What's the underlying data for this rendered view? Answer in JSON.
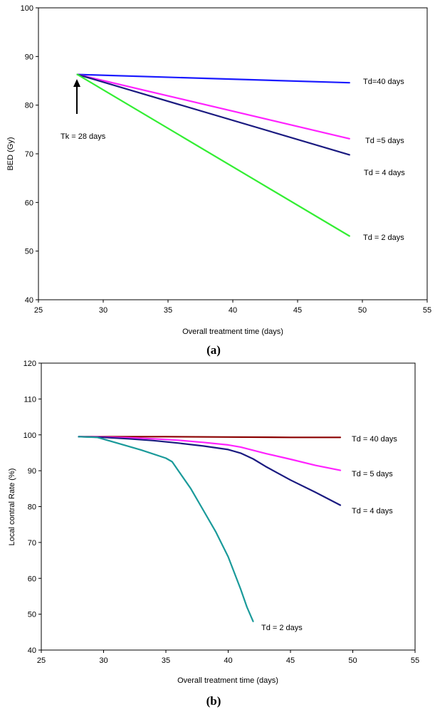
{
  "chart_data": [
    {
      "type": "line",
      "caption": "(a)",
      "xlabel": "Overall treatment time (days)",
      "ylabel": "BED (Gy)",
      "xlim": [
        25,
        55
      ],
      "ylim": [
        40,
        100
      ],
      "xticks": [
        25,
        30,
        35,
        40,
        45,
        50,
        55
      ],
      "yticks": [
        40,
        50,
        60,
        70,
        80,
        90,
        100
      ],
      "annotation": {
        "text": "Tk = 28 days",
        "x": 28
      },
      "series": [
        {
          "name": "Td=40 days",
          "label": "Td=40 days",
          "color": "#1a1aff",
          "x": [
            28,
            49
          ],
          "y": [
            86.3,
            84.6
          ]
        },
        {
          "name": "Td =5 days",
          "label": "Td =5 days",
          "color": "#ff22ff",
          "x": [
            28,
            49
          ],
          "y": [
            86.3,
            73.1
          ]
        },
        {
          "name": "Td = 4 days",
          "label": "Td = 4 days",
          "color": "#1a1a80",
          "x": [
            28,
            49
          ],
          "y": [
            86.3,
            69.8
          ]
        },
        {
          "name": "Td = 2 days",
          "label": "Td = 2 days",
          "color": "#33ee33",
          "x": [
            28,
            49
          ],
          "y": [
            86.3,
            53.1
          ]
        }
      ]
    },
    {
      "type": "line",
      "caption": "(b)",
      "xlabel": "Overall treatment time (days)",
      "ylabel": "Local contral Rate (%)",
      "xlim": [
        25,
        55
      ],
      "ylim": [
        40,
        120
      ],
      "xticks": [
        25,
        30,
        35,
        40,
        45,
        50,
        55
      ],
      "yticks": [
        40,
        50,
        60,
        70,
        80,
        90,
        100,
        110,
        120
      ],
      "series": [
        {
          "name": "Td = 40 days",
          "label": "Td = 40 days",
          "color": "#8b0000",
          "x": [
            28,
            30,
            35,
            40,
            45,
            49
          ],
          "y": [
            99.5,
            99.5,
            99.5,
            99.4,
            99.3,
            99.3
          ]
        },
        {
          "name": "Td = 5 days",
          "label": "Td = 5 days",
          "color": "#ff22ff",
          "x": [
            28,
            30,
            32,
            34,
            36,
            38,
            40,
            41,
            43,
            45,
            47,
            49
          ],
          "y": [
            99.5,
            99.4,
            99.2,
            98.9,
            98.5,
            97.9,
            97.2,
            96.6,
            94.8,
            93.2,
            91.5,
            90.1
          ]
        },
        {
          "name": "Td = 4 days",
          "label": "Td = 4 days",
          "color": "#1a1a80",
          "x": [
            28,
            30,
            32,
            34,
            36,
            38,
            40,
            41,
            42,
            43,
            45,
            47,
            49
          ],
          "y": [
            99.5,
            99.3,
            98.9,
            98.4,
            97.7,
            96.9,
            95.9,
            94.9,
            93.3,
            91.2,
            87.4,
            84.0,
            80.4
          ]
        },
        {
          "name": "Td = 2 days",
          "label": "Td = 2 days",
          "color": "#1a9a9a",
          "x": [
            28,
            29.5,
            31,
            33,
            35,
            35.5,
            36,
            37,
            38,
            39,
            40,
            41,
            41.5,
            42
          ],
          "y": [
            99.5,
            99.3,
            97.8,
            95.8,
            93.5,
            92.5,
            90,
            85,
            79,
            73,
            66,
            57,
            52,
            48
          ]
        }
      ]
    }
  ]
}
